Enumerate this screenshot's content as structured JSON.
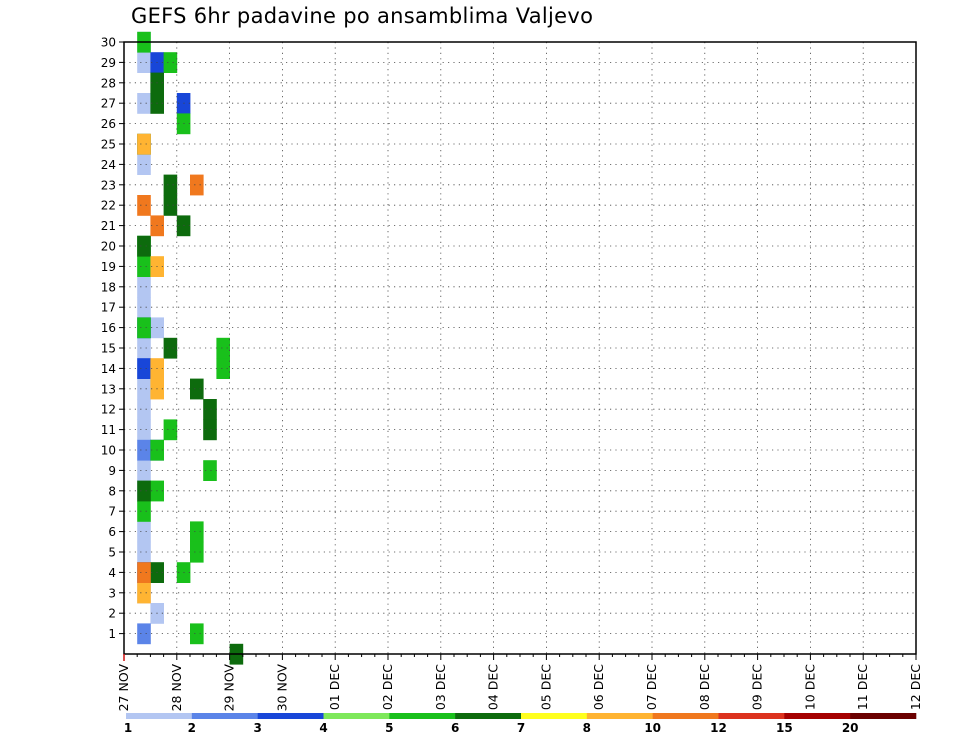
{
  "title": "GEFS 6hr padavine po ansamblima Valjevo",
  "chart_data": {
    "type": "heatmap",
    "title": "GEFS 6hr padavine po ansamblima Valjevo",
    "x_tick_labels": [
      "27 NOV",
      "28 NOV",
      "29 NOV",
      "30 NOV",
      "01 DEC",
      "02 DEC",
      "03 DEC",
      "04 DEC",
      "05 DEC",
      "06 DEC",
      "07 DEC",
      "08 DEC",
      "09 DEC",
      "10 DEC",
      "11 DEC",
      "12 DEC"
    ],
    "y_tick_labels": [
      "1",
      "2",
      "3",
      "4",
      "5",
      "6",
      "7",
      "8",
      "9",
      "10",
      "11",
      "12",
      "13",
      "14",
      "15",
      "16",
      "17",
      "18",
      "19",
      "20",
      "21",
      "22",
      "23",
      "24",
      "25",
      "26",
      "27",
      "28",
      "29",
      "30"
    ],
    "x_step_hours": 6,
    "y_range": [
      0,
      30
    ],
    "grid": true,
    "colorbar": {
      "placement": "bottom",
      "labels": [
        "1",
        "2",
        "3",
        "4",
        "5",
        "6",
        "7",
        "8",
        "10",
        "12",
        "15",
        "20"
      ],
      "levels": [
        1,
        2,
        3,
        4,
        5,
        6,
        7,
        8,
        10,
        12,
        15,
        20
      ],
      "colors": [
        "#b3c6f2",
        "#5b84e8",
        "#1846d8",
        "#7ee85a",
        "#19c01b",
        "#0d6b0d",
        "#ffff1e",
        "#ffb432",
        "#f0781e",
        "#dc321e",
        "#a50000",
        "#6b0000"
      ]
    },
    "cells": [
      [
        0,
        1,
        30
      ],
      [
        0,
        1,
        29
      ],
      [
        0,
        1,
        27
      ],
      [
        0,
        1,
        24
      ],
      [
        0,
        1,
        20
      ],
      [
        0,
        1,
        19
      ],
      [
        0,
        1,
        18
      ],
      [
        0,
        1,
        17
      ],
      [
        0,
        2,
        16
      ],
      [
        0,
        1,
        15
      ],
      [
        0,
        1,
        14
      ],
      [
        0,
        1,
        13
      ],
      [
        0,
        1,
        12
      ],
      [
        0,
        1,
        11
      ],
      [
        0,
        1,
        9
      ],
      [
        0,
        1,
        8
      ],
      [
        0,
        1,
        6
      ],
      [
        0,
        1,
        5
      ],
      [
        0,
        1,
        3
      ],
      [
        0,
        2,
        2
      ],
      [
        1,
        1,
        10
      ],
      [
        1,
        1,
        1
      ],
      [
        2,
        1,
        16
      ],
      [
        2,
        2,
        10
      ],
      [
        2,
        1,
        4
      ],
      [
        2,
        2,
        29
      ],
      [
        2,
        4,
        27
      ],
      [
        2,
        1,
        14
      ],
      [
        4,
        1,
        30
      ],
      [
        4,
        3,
        29
      ],
      [
        4,
        4,
        26
      ],
      [
        4,
        1,
        20
      ],
      [
        4,
        1,
        19
      ],
      [
        4,
        1,
        16
      ],
      [
        4,
        7,
        15
      ],
      [
        4,
        7,
        14
      ],
      [
        4,
        3,
        11
      ],
      [
        4,
        2,
        10
      ],
      [
        4,
        6,
        9
      ],
      [
        4,
        2,
        8
      ],
      [
        4,
        1,
        7
      ],
      [
        4,
        5,
        6
      ],
      [
        4,
        5,
        5
      ],
      [
        4,
        4,
        4
      ],
      [
        4,
        5,
        1
      ],
      [
        5,
        2,
        28
      ],
      [
        5,
        2,
        27
      ],
      [
        5,
        1,
        25
      ],
      [
        5,
        3,
        23
      ],
      [
        5,
        3,
        22
      ],
      [
        5,
        4,
        21
      ],
      [
        5,
        1,
        20
      ],
      [
        5,
        3,
        15
      ],
      [
        5,
        5,
        13
      ],
      [
        5,
        6,
        12
      ],
      [
        5,
        6,
        11
      ],
      [
        5,
        1,
        8
      ],
      [
        5,
        2,
        4
      ],
      [
        5,
        8,
        0
      ],
      [
        7,
        1,
        25
      ],
      [
        7,
        2,
        19
      ],
      [
        7,
        2,
        14
      ],
      [
        7,
        2,
        13
      ],
      [
        7,
        1,
        3
      ],
      [
        8,
        5,
        23
      ],
      [
        8,
        1,
        22
      ],
      [
        8,
        2,
        21
      ],
      [
        8,
        1,
        4
      ]
    ]
  }
}
